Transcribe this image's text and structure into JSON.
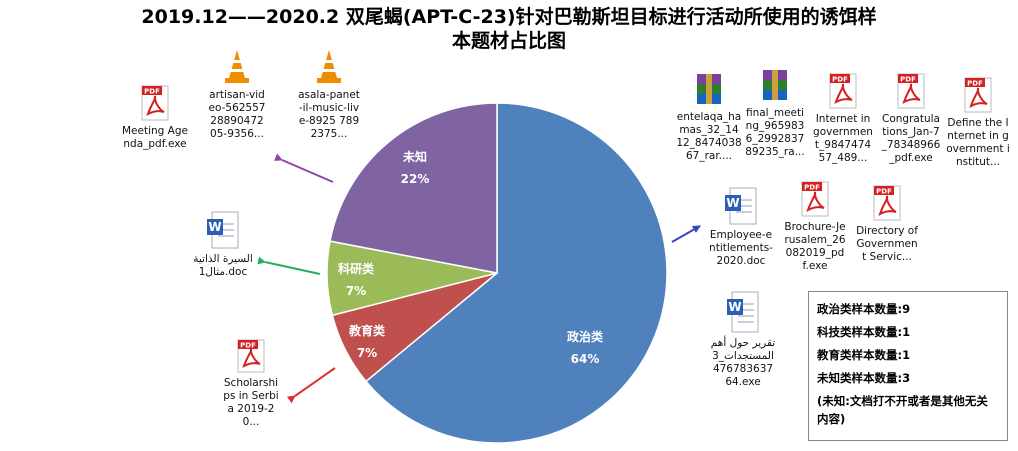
{
  "title_line1": "2019.12——2020.2 双尾蝎(APT-C-23)针对巴勒斯坦目标进行活动所使用的诱饵样",
  "title_line2": "本题材占比图",
  "chart_data": {
    "type": "pie",
    "categories": [
      "政治类",
      "教育类",
      "科研类",
      "未知"
    ],
    "values": [
      64,
      7,
      7,
      22
    ],
    "value_labels": [
      "64%",
      "7%",
      "7%",
      "22%"
    ],
    "colors": [
      "#4F81BD",
      "#C0504D",
      "#9BBB59",
      "#8064A2"
    ],
    "start_angle_deg": 0,
    "direction": "clockwise"
  },
  "legend": {
    "lines": [
      "政治类样本数量:9",
      "科技类样本数量:1",
      "教育类样本数量:1",
      "未知类样本数量:3"
    ],
    "note": "(未知:文档打不开或者是其他无关内容)"
  },
  "files": {
    "unknown": [
      {
        "name": "Meeting Agenda_pdf.exe",
        "icon": "pdf-icon"
      },
      {
        "name": "artisan-video-56255728890472 05-9356...",
        "icon": "vlc-icon"
      },
      {
        "name": "asala-panet-il-music-live-8925 7892375...",
        "icon": "vlc-icon"
      }
    ],
    "research": [
      {
        "name": "السيرة الذاتية مثال1.doc",
        "icon": "word-icon"
      }
    ],
    "education": [
      {
        "name": "Scholarships in Serbia 2019-20...",
        "icon": "pdf-icon"
      }
    ],
    "politics": [
      {
        "name": "entelaqa_hamas_32_1412_847403867_rar....",
        "icon": "winrar-icon"
      },
      {
        "name": "final_meeting_9659836_299283789235_ra...",
        "icon": "winrar-icon"
      },
      {
        "name": "Internet in government_984747457_489...",
        "icon": "pdf-icon"
      },
      {
        "name": "Congratulations_Jan-7_78348966_pdf.exe",
        "icon": "pdf-icon"
      },
      {
        "name": "Define the Internet in government institut...",
        "icon": "pdf-icon"
      },
      {
        "name": "Employee-entitlements-2020.doc",
        "icon": "word-icon"
      },
      {
        "name": "Brochure-Jerusalem_26082019_pdf.exe",
        "icon": "pdf-icon"
      },
      {
        "name": "Directory of Government Servic...",
        "icon": "pdf-icon"
      },
      {
        "name": "تقرير حول أهم المستجدات_3 47678363764.exe",
        "icon": "word-icon"
      }
    ]
  },
  "arrow_colors": {
    "unknown": "#8E44AD",
    "research": "#27AE60",
    "education": "#E03030",
    "politics": "#3A44C8"
  }
}
